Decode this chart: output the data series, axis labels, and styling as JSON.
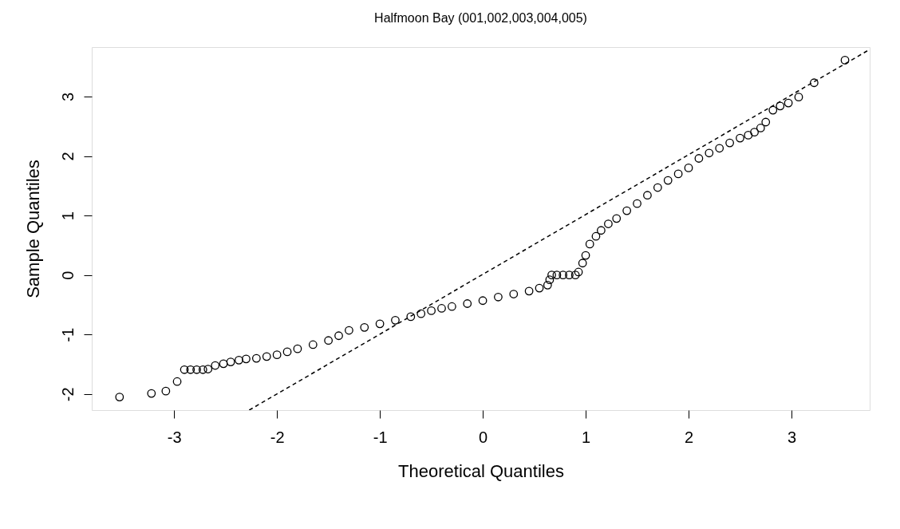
{
  "chart_data": {
    "type": "scatter",
    "title": "Halfmoon Bay (001,002,003,004,005)",
    "xlabel": "Theoretical Quantiles",
    "ylabel": "Sample Quantiles",
    "xlim": [
      -3.8,
      3.76
    ],
    "ylim": [
      -2.27,
      3.83
    ],
    "xticks": [
      -3,
      -2,
      -1,
      0,
      1,
      2,
      3
    ],
    "yticks": [
      -2,
      -1,
      0,
      1,
      2,
      3
    ],
    "grid": false,
    "marker": "circle",
    "series": [
      {
        "color": "#000000",
        "x": [
          -3.53,
          -3.22,
          -3.08,
          -2.97,
          -2.9,
          -2.84,
          -2.78,
          -2.72,
          -2.67,
          -2.6,
          -2.52,
          -2.45,
          -2.37,
          -2.3,
          -2.2,
          -2.1,
          -2.0,
          -1.9,
          -1.8,
          -1.65,
          -1.5,
          -1.4,
          -1.3,
          -1.15,
          -1.0,
          -0.85,
          -0.7,
          -0.6,
          -0.5,
          -0.4,
          -0.3,
          -0.15,
          0.0,
          0.15,
          0.3,
          0.45,
          0.55,
          0.63,
          0.65,
          0.67,
          0.72,
          0.78,
          0.84,
          0.9,
          0.93,
          0.97,
          1.0,
          1.04,
          1.1,
          1.15,
          1.22,
          1.3,
          1.4,
          1.5,
          1.6,
          1.7,
          1.8,
          1.9,
          2.0,
          2.1,
          2.2,
          2.3,
          2.4,
          2.5,
          2.58,
          2.64,
          2.7,
          2.75,
          2.82,
          2.89,
          2.97,
          3.07,
          3.22,
          3.52
        ],
        "values": [
          -2.05,
          -1.99,
          -1.95,
          -1.79,
          -1.59,
          -1.59,
          -1.59,
          -1.59,
          -1.58,
          -1.52,
          -1.49,
          -1.46,
          -1.43,
          -1.41,
          -1.4,
          -1.37,
          -1.34,
          -1.29,
          -1.24,
          -1.17,
          -1.1,
          -1.02,
          -0.93,
          -0.88,
          -0.82,
          -0.76,
          -0.7,
          -0.65,
          -0.6,
          -0.56,
          -0.53,
          -0.48,
          -0.43,
          -0.37,
          -0.32,
          -0.27,
          -0.22,
          -0.17,
          -0.08,
          0.0,
          0.0,
          0.0,
          0.0,
          0.0,
          0.05,
          0.2,
          0.33,
          0.52,
          0.65,
          0.75,
          0.86,
          0.95,
          1.08,
          1.2,
          1.34,
          1.47,
          1.59,
          1.7,
          1.8,
          1.96,
          2.05,
          2.13,
          2.22,
          2.3,
          2.35,
          2.4,
          2.47,
          2.57,
          2.77,
          2.84,
          2.89,
          2.99,
          3.23,
          3.61
        ]
      },
      {
        "type": "line",
        "marker": "none",
        "color": "#000000",
        "line_style": "dashed",
        "x": [
          -2.27,
          3.76
        ],
        "values": [
          -2.27,
          3.79
        ]
      }
    ]
  }
}
